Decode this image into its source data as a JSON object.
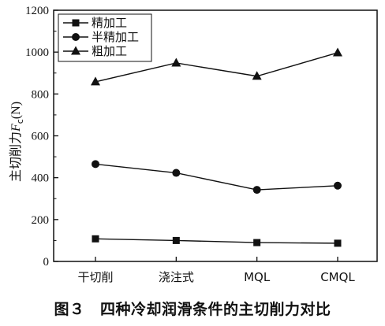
{
  "chart_data": {
    "type": "line",
    "categories": [
      "干切削",
      "浇注式",
      "MQL",
      "CMQL"
    ],
    "series": [
      {
        "name": "精加工",
        "marker": "square",
        "values": [
          108,
          100,
          90,
          87
        ]
      },
      {
        "name": "半精加工",
        "marker": "circle",
        "values": [
          465,
          423,
          342,
          362
        ]
      },
      {
        "name": "粗加工",
        "marker": "triangle",
        "values": [
          858,
          948,
          885,
          997
        ]
      }
    ],
    "ylabel": "主切削力",
    "ylabel_symbol": "F",
    "ylabel_subscript": "c",
    "ylabel_unit": "(N)",
    "ylim": [
      0,
      1200
    ],
    "yticks": [
      0,
      200,
      400,
      600,
      800,
      1000,
      1200
    ],
    "legend_position": "top-left",
    "grid": false,
    "line_color": "#111111"
  },
  "caption": "图３　四种冷却润滑条件的主切削力对比"
}
